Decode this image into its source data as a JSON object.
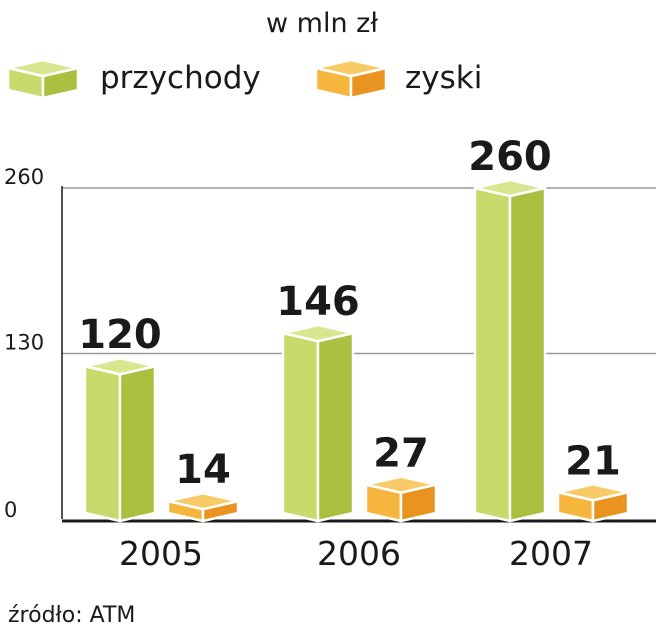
{
  "chart_data": {
    "type": "bar",
    "title": "w mln zł",
    "categories": [
      "2005",
      "2006",
      "2007"
    ],
    "series": [
      {
        "name": "przychody",
        "values": [
          120,
          146,
          260
        ],
        "colors": {
          "left": "#c7da6c",
          "right": "#abbf40",
          "top": "#d8e690"
        }
      },
      {
        "name": "zyski",
        "values": [
          14,
          27,
          21
        ],
        "colors": {
          "left": "#f6b53c",
          "right": "#e99420",
          "top": "#f9cb68"
        }
      }
    ],
    "yticks": [
      "0",
      "130",
      "260"
    ],
    "ylim": [
      0,
      260
    ],
    "grid": true,
    "legend": "top",
    "source": "źródło: ATM"
  }
}
